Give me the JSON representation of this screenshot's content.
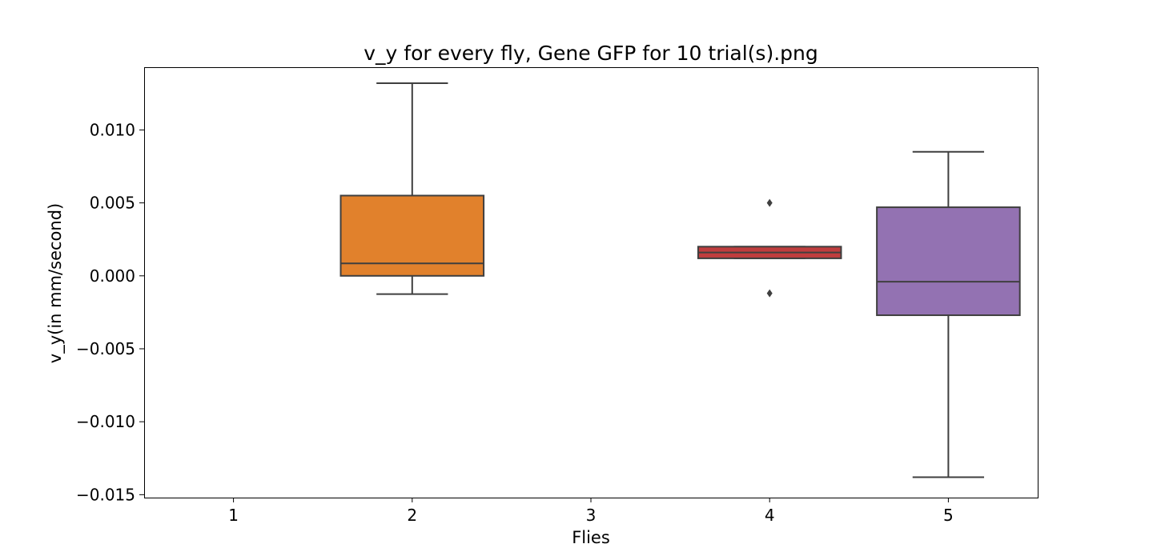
{
  "chart_data": {
    "type": "box",
    "title": "v_y for every fly, Gene GFP for 10 trial(s).png",
    "xlabel": "Flies",
    "ylabel": "v_y(in mm/second)",
    "categories": [
      "1",
      "2",
      "3",
      "4",
      "5"
    ],
    "ylim": [
      -0.0152,
      0.0143
    ],
    "yticks": [
      -0.015,
      -0.01,
      -0.005,
      0.0,
      0.005,
      0.01
    ],
    "ytick_labels": [
      "−0.015",
      "−0.010",
      "−0.005",
      "0.000",
      "0.005",
      "0.010"
    ],
    "grid": false,
    "boxes": [
      {
        "category": "1",
        "present": false
      },
      {
        "category": "2",
        "present": true,
        "color": "#e1812c",
        "whisker_low": -0.00125,
        "q1": 0.0,
        "median": 0.00085,
        "q3": 0.0055,
        "whisker_high": 0.0132,
        "outliers": []
      },
      {
        "category": "3",
        "present": false
      },
      {
        "category": "4",
        "present": true,
        "color": "#c03d3e",
        "whisker_low": 0.0012,
        "q1": 0.0012,
        "median": 0.0016,
        "q3": 0.002,
        "whisker_high": 0.002,
        "outliers": [
          0.005,
          -0.0012
        ]
      },
      {
        "category": "5",
        "present": true,
        "color": "#9372b2",
        "whisker_low": -0.0138,
        "q1": -0.0027,
        "median": -0.0004,
        "q3": 0.0047,
        "whisker_high": 0.0085,
        "outliers": []
      }
    ]
  }
}
